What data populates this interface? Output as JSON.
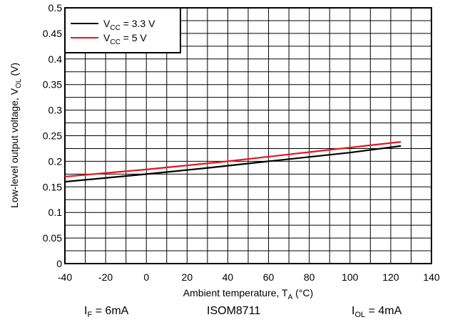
{
  "chart_data": {
    "type": "line",
    "xlabel": "Ambient temperature, T",
    "xlabel_sub": "A",
    "xlabel_unit": " (°C)",
    "ylabel": "Low-level output voltage, V",
    "ylabel_sub": "OL",
    "ylabel_unit": " (V)",
    "xlim": [
      -40,
      140
    ],
    "ylim": [
      0,
      0.5
    ],
    "x_ticks": [
      -40,
      -20,
      0,
      20,
      40,
      60,
      80,
      100,
      120,
      140
    ],
    "y_ticks": [
      0,
      0.05,
      0.1,
      0.15,
      0.2,
      0.25,
      0.3,
      0.35,
      0.4,
      0.45,
      0.5
    ],
    "grid": true,
    "legend_position": "top-left",
    "series": [
      {
        "name": "V",
        "name_sub": "CC",
        "name_value": " = 3.3 V",
        "color": "#000000",
        "x": [
          -40,
          0,
          30,
          60,
          100,
          125
        ],
        "y": [
          0.16,
          0.175,
          0.187,
          0.2,
          0.217,
          0.23
        ]
      },
      {
        "name": "V",
        "name_sub": "CC",
        "name_value": " = 5 V",
        "color": "#e8141e",
        "x": [
          -40,
          0,
          40,
          80,
          125
        ],
        "y": [
          0.17,
          0.184,
          0.2,
          0.218,
          0.238
        ]
      }
    ]
  },
  "footer": {
    "left_main": "I",
    "left_sub": "F",
    "left_value": " = 6mA",
    "center": "ISOM8711",
    "right_main": "I",
    "right_sub": "OL",
    "right_value": " = 4mA"
  }
}
